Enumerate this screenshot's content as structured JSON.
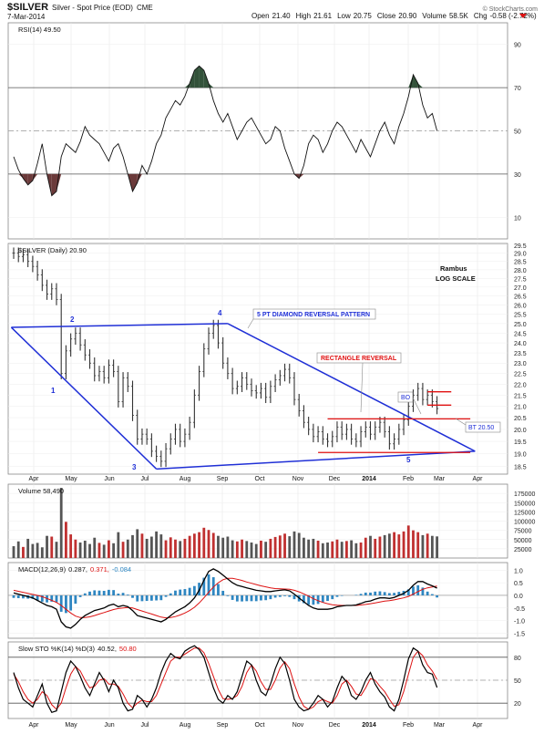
{
  "header": {
    "symbol": "$SILVER",
    "desc": "Silver - Spot Price (EOD)",
    "exchange": "CME",
    "date": "7-Mar-2014",
    "open_label": "Open",
    "open": "21.40",
    "high_label": "High",
    "high": "21.61",
    "low_label": "Low",
    "low": "20.75",
    "close_label": "Close",
    "close": "20.90",
    "volume_label": "Volume",
    "volume": "58.5K",
    "chg_label": "Chg",
    "chg": "-0.58 (-2.72%)",
    "credit": "© StockCharts.com"
  },
  "colors": {
    "price": "#333333",
    "trend": "#1f2fd6",
    "support": "#e01010",
    "volume_up": "#c03030",
    "volume_down": "#555555",
    "macd_pos": "#2e86c1",
    "overbought": "#33523a",
    "oversold": "#6b3a3a"
  },
  "months": [
    "Apr",
    "May",
    "Jun",
    "Jul",
    "Aug",
    "Sep",
    "Oct",
    "Nov",
    "Dec",
    "2014",
    "Feb",
    "Mar",
    "Apr"
  ],
  "chart_data": [
    {
      "type": "line",
      "panel": "rsi",
      "legend": "RSI(14) 49.50",
      "ylim": [
        0,
        100
      ],
      "yticks": [
        "90",
        "70",
        "50",
        "30",
        "10"
      ],
      "reference_lines": [
        70,
        50,
        30
      ],
      "x_start_month": "Mar 2013",
      "values": [
        38,
        32,
        28,
        25,
        27,
        35,
        44,
        30,
        20,
        22,
        38,
        44,
        42,
        40,
        45,
        52,
        48,
        46,
        44,
        40,
        36,
        42,
        44,
        38,
        30,
        22,
        26,
        34,
        30,
        36,
        44,
        48,
        56,
        60,
        64,
        62,
        66,
        72,
        78,
        80,
        78,
        72,
        64,
        58,
        54,
        58,
        52,
        46,
        50,
        54,
        56,
        52,
        48,
        44,
        46,
        52,
        50,
        42,
        36,
        30,
        28,
        34,
        44,
        48,
        46,
        40,
        44,
        50,
        54,
        52,
        48,
        44,
        40,
        46,
        42,
        38,
        44,
        50,
        54,
        48,
        44,
        52,
        58,
        66,
        76,
        72,
        62,
        56,
        58,
        50
      ]
    },
    {
      "type": "bar",
      "panel": "price",
      "legend": "$SILVER (Daily) 20.90",
      "y_scale": "log",
      "ylim": [
        18.2,
        29.6
      ],
      "yticks": [
        "29.5",
        "29.0",
        "28.5",
        "28.0",
        "27.5",
        "27.0",
        "26.5",
        "26.0",
        "25.5",
        "25.0",
        "24.5",
        "24.0",
        "23.5",
        "23.0",
        "22.5",
        "22.0",
        "21.5",
        "21.0",
        "20.5",
        "20.0",
        "19.5",
        "19.0",
        "18.5"
      ],
      "x_start_month": "Mar 2013",
      "close": [
        29.0,
        28.8,
        28.9,
        28.5,
        28.2,
        27.7,
        27.1,
        26.6,
        26.9,
        26.3,
        22.5,
        23.6,
        24.2,
        24.5,
        23.9,
        23.4,
        23.0,
        22.4,
        22.6,
        22.3,
        22.9,
        22.6,
        21.2,
        22.3,
        21.9,
        20.6,
        19.6,
        19.8,
        19.6,
        19.1,
        18.9,
        18.7,
        19.2,
        19.6,
        20.0,
        19.5,
        19.8,
        20.3,
        21.5,
        22.6,
        23.7,
        24.5,
        24.9,
        24.0,
        23.0,
        22.5,
        21.8,
        21.9,
        22.3,
        22.0,
        21.7,
        21.6,
        21.8,
        21.4,
        21.9,
        22.2,
        22.4,
        22.7,
        22.3,
        21.3,
        20.8,
        20.3,
        20.0,
        19.7,
        19.9,
        19.6,
        19.5,
        19.7,
        20.1,
        19.8,
        20.0,
        19.6,
        19.5,
        19.9,
        20.1,
        19.8,
        20.1,
        20.3,
        19.9,
        19.4,
        19.6,
        20.0,
        20.4,
        21.0,
        21.5,
        21.8,
        21.3,
        21.5,
        21.2,
        20.9
      ],
      "annotations": [
        "Rambus",
        "LOG SCALE",
        "5 PT DIAMOND REVERSAL PATTERN",
        "RECTANGLE REVERSAL",
        "BO",
        "BT 20.50",
        "1",
        "2",
        "3",
        "4",
        "5"
      ],
      "diamond_points": [
        [
          -0.5,
          24.8
        ],
        [
          10,
          22.0
        ],
        [
          14,
          24.5
        ],
        [
          30,
          18.4
        ],
        [
          45,
          25.0
        ],
        [
          84,
          18.9
        ],
        [
          97,
          19.1
        ]
      ],
      "support_lines": [
        19.05,
        20.45,
        21.05,
        21.65
      ]
    },
    {
      "type": "bar",
      "panel": "volume",
      "legend": "Volume 58,490",
      "ylim": [
        0,
        200000
      ],
      "yticks": [
        "175000",
        "150000",
        "125000",
        "100000",
        "75000",
        "50000",
        "25000"
      ],
      "x_start_month": "Mar 2013",
      "values": [
        32000,
        45000,
        30000,
        52000,
        38000,
        41000,
        29000,
        60000,
        58000,
        44000,
        190000,
        98000,
        64000,
        50000,
        42000,
        47000,
        38000,
        55000,
        41000,
        36000,
        48000,
        40000,
        70000,
        44000,
        50000,
        62000,
        78000,
        66000,
        52000,
        58000,
        72000,
        64000,
        48000,
        56000,
        50000,
        46000,
        52000,
        60000,
        66000,
        70000,
        82000,
        76000,
        68000,
        60000,
        55000,
        58000,
        48000,
        45000,
        50000,
        46000,
        42000,
        38000,
        47000,
        44000,
        52000,
        57000,
        61000,
        66000,
        59000,
        72000,
        68000,
        55000,
        50000,
        52000,
        47000,
        40000,
        42000,
        45000,
        50000,
        44000,
        46000,
        48000,
        40000,
        42000,
        55000,
        60000,
        52000,
        58000,
        62000,
        66000,
        70000,
        64000,
        72000,
        88000,
        75000,
        70000,
        62000,
        66000,
        60000,
        58490
      ]
    },
    {
      "type": "line",
      "panel": "macd",
      "legend_name": "MACD(12,26,9)",
      "legend_macd": "0.287,",
      "legend_signal": "0.371,",
      "legend_hist": "-0.084",
      "ylim": [
        -1.7,
        1.3
      ],
      "yticks": [
        "1.0",
        "0.5",
        "0.0",
        "-0.5",
        "-1.0",
        "-1.5"
      ],
      "x_start_month": "Mar 2013",
      "macd": [
        0.1,
        0.05,
        0.0,
        -0.05,
        -0.1,
        -0.2,
        -0.3,
        -0.4,
        -0.45,
        -0.55,
        -1.05,
        -1.25,
        -1.3,
        -1.15,
        -0.95,
        -0.8,
        -0.7,
        -0.6,
        -0.55,
        -0.5,
        -0.4,
        -0.35,
        -0.45,
        -0.4,
        -0.45,
        -0.6,
        -0.8,
        -0.85,
        -0.9,
        -0.95,
        -1.0,
        -1.05,
        -0.95,
        -0.8,
        -0.65,
        -0.55,
        -0.45,
        -0.3,
        -0.1,
        0.2,
        0.6,
        0.95,
        1.05,
        0.95,
        0.8,
        0.65,
        0.5,
        0.4,
        0.35,
        0.3,
        0.25,
        0.2,
        0.18,
        0.15,
        0.15,
        0.18,
        0.2,
        0.22,
        0.18,
        0.05,
        -0.1,
        -0.25,
        -0.4,
        -0.5,
        -0.55,
        -0.55,
        -0.55,
        -0.52,
        -0.45,
        -0.42,
        -0.4,
        -0.4,
        -0.38,
        -0.32,
        -0.25,
        -0.22,
        -0.15,
        -0.1,
        -0.1,
        -0.12,
        -0.08,
        0.0,
        0.08,
        0.2,
        0.4,
        0.55,
        0.55,
        0.45,
        0.38,
        0.287
      ],
      "signal": [
        0.2,
        0.16,
        0.12,
        0.08,
        0.04,
        0.0,
        -0.05,
        -0.12,
        -0.2,
        -0.28,
        -0.4,
        -0.55,
        -0.7,
        -0.82,
        -0.88,
        -0.88,
        -0.85,
        -0.8,
        -0.74,
        -0.68,
        -0.62,
        -0.56,
        -0.52,
        -0.5,
        -0.48,
        -0.5,
        -0.56,
        -0.62,
        -0.68,
        -0.74,
        -0.8,
        -0.86,
        -0.89,
        -0.88,
        -0.84,
        -0.78,
        -0.7,
        -0.6,
        -0.47,
        -0.3,
        -0.1,
        0.12,
        0.33,
        0.5,
        0.62,
        0.68,
        0.68,
        0.64,
        0.59,
        0.53,
        0.48,
        0.43,
        0.38,
        0.34,
        0.3,
        0.27,
        0.26,
        0.25,
        0.24,
        0.2,
        0.14,
        0.06,
        -0.03,
        -0.13,
        -0.21,
        -0.28,
        -0.33,
        -0.37,
        -0.39,
        -0.4,
        -0.4,
        -0.4,
        -0.4,
        -0.38,
        -0.36,
        -0.33,
        -0.3,
        -0.26,
        -0.23,
        -0.21,
        -0.18,
        -0.14,
        -0.1,
        -0.04,
        0.05,
        0.15,
        0.24,
        0.3,
        0.33,
        0.371
      ]
    },
    {
      "type": "line",
      "panel": "stochastic",
      "legend_name": "Slow STO %K(14) %D(3)",
      "legend_k": "40.52,",
      "legend_d": "50.80",
      "ylim": [
        0,
        100
      ],
      "yticks": [
        "80",
        "50",
        "20"
      ],
      "reference_lines": [
        80,
        50,
        20
      ],
      "x_start_month": "Mar 2013",
      "k": [
        60,
        40,
        25,
        20,
        15,
        30,
        45,
        20,
        8,
        10,
        35,
        60,
        75,
        68,
        55,
        40,
        30,
        45,
        60,
        50,
        35,
        50,
        40,
        20,
        10,
        12,
        30,
        25,
        15,
        25,
        40,
        60,
        75,
        85,
        80,
        78,
        88,
        92,
        95,
        90,
        80,
        60,
        40,
        25,
        20,
        30,
        25,
        35,
        55,
        75,
        70,
        50,
        35,
        30,
        45,
        65,
        80,
        72,
        50,
        25,
        15,
        10,
        12,
        20,
        30,
        25,
        15,
        22,
        40,
        55,
        48,
        30,
        25,
        35,
        50,
        60,
        45,
        35,
        28,
        15,
        10,
        25,
        50,
        78,
        92,
        88,
        70,
        60,
        58,
        40.52
      ],
      "d": [
        58,
        48,
        35,
        25,
        20,
        25,
        35,
        30,
        18,
        12,
        20,
        40,
        58,
        68,
        62,
        50,
        40,
        42,
        50,
        52,
        45,
        45,
        42,
        32,
        20,
        14,
        20,
        24,
        22,
        22,
        30,
        45,
        60,
        75,
        80,
        80,
        84,
        88,
        92,
        92,
        86,
        72,
        55,
        38,
        26,
        25,
        26,
        30,
        42,
        60,
        70,
        62,
        48,
        38,
        38,
        50,
        66,
        74,
        65,
        45,
        28,
        16,
        12,
        15,
        22,
        25,
        22,
        20,
        30,
        45,
        50,
        42,
        32,
        30,
        40,
        52,
        50,
        42,
        35,
        25,
        16,
        18,
        35,
        58,
        80,
        88,
        82,
        70,
        62,
        50.8
      ]
    }
  ]
}
